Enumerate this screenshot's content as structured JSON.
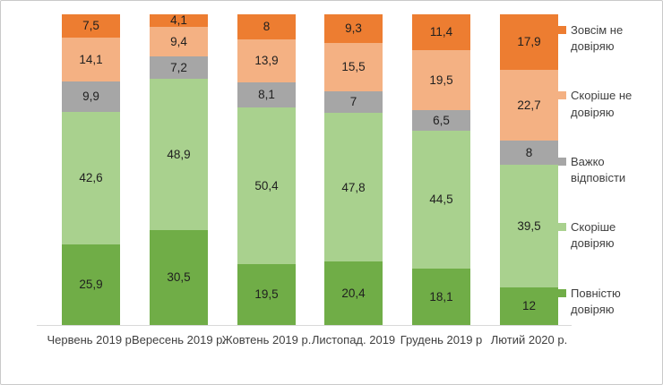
{
  "chart_data": {
    "type": "bar",
    "stacked": true,
    "percent_stacked": true,
    "grid": false,
    "legend_position": "right",
    "title": "",
    "xlabel": "",
    "ylabel": "",
    "ylim": [
      0,
      100
    ],
    "categories": [
      "Червень 2019 р.",
      "Вересень 2019 р.",
      "Жовтень 2019 р.",
      "Листопад. 2019",
      "Грудень 2019 р",
      "Лютий 2020 р."
    ],
    "series": [
      {
        "name": "Повністю довіряю",
        "color": "#70AD47",
        "values": [
          25.9,
          30.5,
          19.5,
          20.4,
          18.1,
          12
        ],
        "labels": [
          "25,9",
          "30,5",
          "19,5",
          "20,4",
          "18,1",
          "12"
        ]
      },
      {
        "name": "Скоріше довіряю",
        "color": "#A9D18E",
        "values": [
          42.6,
          48.9,
          50.4,
          47.8,
          44.5,
          39.5
        ],
        "labels": [
          "42,6",
          "48,9",
          "50,4",
          "47,8",
          "44,5",
          "39,5"
        ]
      },
      {
        "name": "Важко відповісти",
        "color": "#A6A6A6",
        "values": [
          9.9,
          7.2,
          8.1,
          7,
          6.5,
          8
        ],
        "labels": [
          "9,9",
          "7,2",
          "8,1",
          "7",
          "6,5",
          "8"
        ]
      },
      {
        "name": "Скоріше не довіряю",
        "color": "#F4B183",
        "values": [
          14.1,
          9.4,
          13.9,
          15.5,
          19.5,
          22.7
        ],
        "labels": [
          "14,1",
          "9,4",
          "13,9",
          "15,5",
          "19,5",
          "22,7"
        ]
      },
      {
        "name": "Зовсім не довіряю",
        "color": "#ED7D31",
        "values": [
          7.5,
          4.1,
          8,
          9.3,
          11.4,
          17.9
        ],
        "labels": [
          "7,5",
          "4,1",
          "8",
          "9,3",
          "11,4",
          "17,9"
        ]
      }
    ],
    "legend": [
      {
        "label": "Зовсім не довіряю",
        "color": "#ED7D31"
      },
      {
        "label": "Скоріше  не довіряю",
        "color": "#F4B183"
      },
      {
        "label": "Важко відповісти",
        "color": "#A6A6A6"
      },
      {
        "label": "Скоріше довіряю",
        "color": "#A9D18E"
      },
      {
        "label": "Повністю довіряю",
        "color": "#70AD47"
      }
    ],
    "colors": {
      "axis_line": "#D9D9D9",
      "label_text": "#1F1F1F",
      "axis_text": "#3F3F3F",
      "canvas_border": "#C9C9C9"
    }
  }
}
